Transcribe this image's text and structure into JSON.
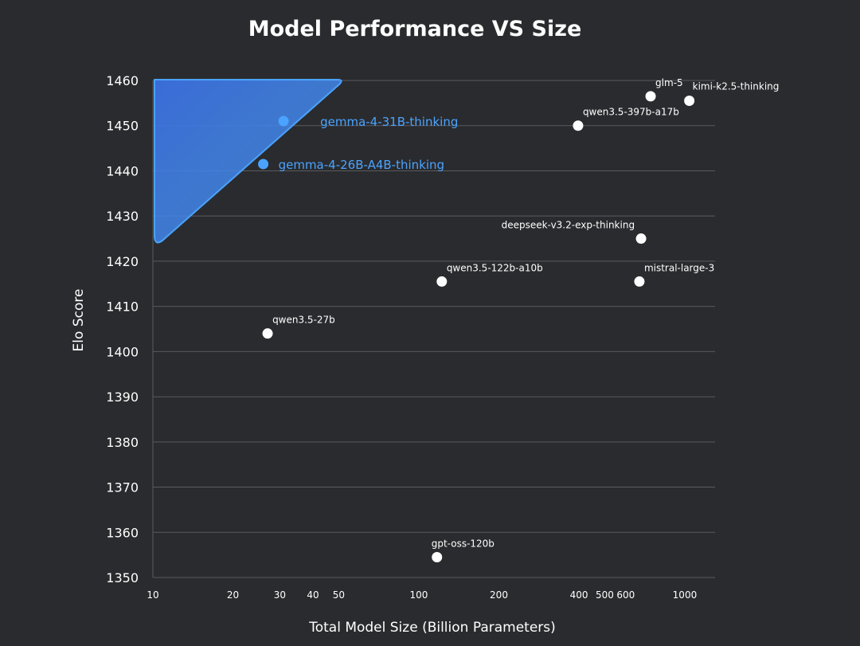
{
  "chart_data": {
    "type": "scatter",
    "title": "Model Performance VS Size",
    "xlabel": "Total Model Size (Billion Parameters)",
    "ylabel": "Elo Score",
    "xscale": "log",
    "xlim": [
      10,
      1300
    ],
    "ylim": [
      1350,
      1460
    ],
    "yticks": [
      1350,
      1360,
      1370,
      1380,
      1390,
      1400,
      1410,
      1420,
      1430,
      1440,
      1450,
      1460
    ],
    "xticks": [
      {
        "value": 10,
        "label": "10"
      },
      {
        "value": 20,
        "label": "20"
      },
      {
        "value": 30,
        "label": "30"
      },
      {
        "value": 40,
        "label": "40"
      },
      {
        "value": 50,
        "label": "50"
      },
      {
        "value": 100,
        "label": "100"
      },
      {
        "value": 200,
        "label": "200"
      },
      {
        "value": 400,
        "label": "400"
      },
      {
        "value": 500,
        "label": "500"
      },
      {
        "value": 600,
        "label": "600"
      },
      {
        "value": 1000,
        "label": "1000"
      }
    ],
    "grid": true,
    "highlight_region": {
      "color": "#3b6fe0",
      "border_color": "#4aa3ff"
    },
    "points": [
      {
        "name": "gemma-4-31B-thinking",
        "x": 31,
        "y": 1451,
        "highlight": true
      },
      {
        "name": "gemma-4-26B-A4B-thinking",
        "x": 26,
        "y": 1441.5,
        "highlight": true
      },
      {
        "name": "glm-5",
        "x": 744,
        "y": 1456.5,
        "highlight": false
      },
      {
        "name": "kimi-k2.5-thinking",
        "x": 1040,
        "y": 1455.5,
        "highlight": false
      },
      {
        "name": "qwen3.5-397b-a17b",
        "x": 397,
        "y": 1450,
        "highlight": false
      },
      {
        "name": "deepseek-v3.2-exp-thinking",
        "x": 685,
        "y": 1425,
        "highlight": false
      },
      {
        "name": "qwen3.5-122b-a10b",
        "x": 122,
        "y": 1415.5,
        "highlight": false
      },
      {
        "name": "mistral-large-3",
        "x": 675,
        "y": 1415.5,
        "highlight": false
      },
      {
        "name": "qwen3.5-27b",
        "x": 27,
        "y": 1404,
        "highlight": false
      },
      {
        "name": "gpt-oss-120b",
        "x": 117,
        "y": 1354.5,
        "highlight": false
      }
    ],
    "colors": {
      "point": "#ffffff",
      "highlight_point": "#4aa3ff",
      "grid": "#5a5b5f"
    }
  }
}
